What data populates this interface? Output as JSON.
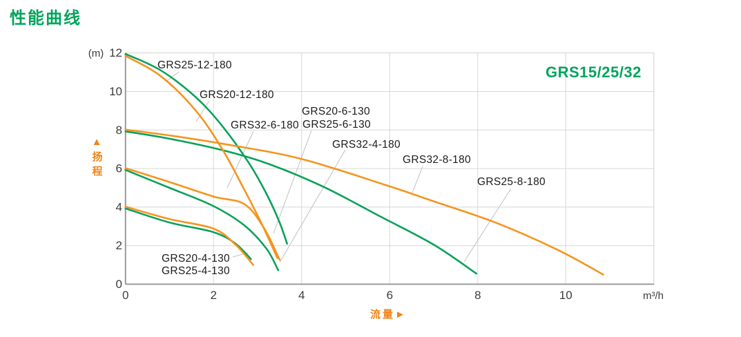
{
  "page": {
    "title": "性能曲线"
  },
  "chart_data": {
    "type": "line",
    "title": "性能曲线",
    "group_label": "GRS15/25/32",
    "xlabel": "流量",
    "xlabel_arrow": "►",
    "ylabel": "扬程",
    "ylabel_arrow": "▲",
    "x_unit": "m³/h",
    "y_unit": "(m)",
    "xlim": [
      0,
      12
    ],
    "ylim": [
      0,
      12
    ],
    "grid": true,
    "legend_position": "none",
    "xticks": [
      "0",
      "2",
      "4",
      "6",
      "8",
      "10"
    ],
    "yticks": [
      "0",
      "2",
      "4",
      "6",
      "8",
      "10",
      "12"
    ],
    "colors": {
      "green": "#0aa15a",
      "orange": "#f5941e"
    },
    "series": [
      {
        "name": "GRS25-12-180",
        "color": "#0aa15a",
        "points": [
          [
            0,
            11.95
          ],
          [
            0.8,
            11.1
          ],
          [
            1.6,
            9.7
          ],
          [
            2.2,
            8.2
          ],
          [
            2.8,
            6.3
          ],
          [
            3.2,
            4.7
          ],
          [
            3.5,
            3.2
          ],
          [
            3.67,
            2.1
          ]
        ]
      },
      {
        "name": "GRS20-12-180",
        "color": "#f5941e",
        "points": [
          [
            0,
            11.85
          ],
          [
            0.8,
            10.8
          ],
          [
            1.6,
            9.0
          ],
          [
            2.2,
            7.0
          ],
          [
            2.7,
            4.9
          ],
          [
            3.1,
            3.1
          ],
          [
            3.45,
            1.35
          ]
        ]
      },
      {
        "name": "GRS25-8-180",
        "color": "#0aa15a",
        "points": [
          [
            0,
            7.93
          ],
          [
            1,
            7.55
          ],
          [
            2.3,
            6.9
          ],
          [
            3.3,
            6.2
          ],
          [
            4.5,
            5.05
          ],
          [
            5.8,
            3.5
          ],
          [
            7,
            2.05
          ],
          [
            7.97,
            0.55
          ]
        ]
      },
      {
        "name": "GRS32-8-180",
        "color": "#f5941e",
        "points": [
          [
            0,
            8.02
          ],
          [
            1,
            7.72
          ],
          [
            2.3,
            7.25
          ],
          [
            4,
            6.5
          ],
          [
            5.9,
            5.15
          ],
          [
            7,
            4.3
          ],
          [
            8.4,
            3.2
          ],
          [
            9.8,
            1.8
          ],
          [
            10.85,
            0.5
          ]
        ]
      },
      {
        "name": "GRS20-6-130 / GRS25-6-130",
        "color": "#0aa15a",
        "points": [
          [
            0,
            5.93
          ],
          [
            1,
            5.0
          ],
          [
            2,
            4.05
          ],
          [
            2.7,
            3.05
          ],
          [
            3.2,
            1.85
          ],
          [
            3.47,
            0.72
          ]
        ]
      },
      {
        "name": "GRS32-6-180",
        "color": "#f5941e",
        "points": [
          [
            0,
            6.02
          ],
          [
            1,
            5.3
          ],
          [
            2,
            4.55
          ],
          [
            2.7,
            4.15
          ],
          [
            3.15,
            2.9
          ],
          [
            3.5,
            1.27
          ]
        ]
      },
      {
        "name": "GRS20-4-130 / GRS25-4-130",
        "color": "#0aa15a",
        "points": [
          [
            0,
            3.93
          ],
          [
            1,
            3.2
          ],
          [
            2,
            2.7
          ],
          [
            2.5,
            2.1
          ],
          [
            2.85,
            1.3
          ]
        ]
      },
      {
        "name": "GRS32-4-180",
        "color": "#f5941e",
        "points": [
          [
            0,
            4.02
          ],
          [
            1,
            3.38
          ],
          [
            2,
            2.88
          ],
          [
            2.5,
            2.05
          ],
          [
            2.9,
            1.0
          ]
        ]
      }
    ],
    "labels": [
      {
        "text": "GRS25-12-180"
      },
      {
        "text": "GRS20-12-180"
      },
      {
        "text": "GRS20-6-130"
      },
      {
        "text": "GRS32-6-180"
      },
      {
        "text": "GRS25-6-130"
      },
      {
        "text": "GRS32-4-180"
      },
      {
        "text": "GRS32-8-180"
      },
      {
        "text": "GRS25-8-180"
      },
      {
        "text": "GRS20-4-130"
      },
      {
        "text": "GRS25-4-130"
      }
    ]
  }
}
